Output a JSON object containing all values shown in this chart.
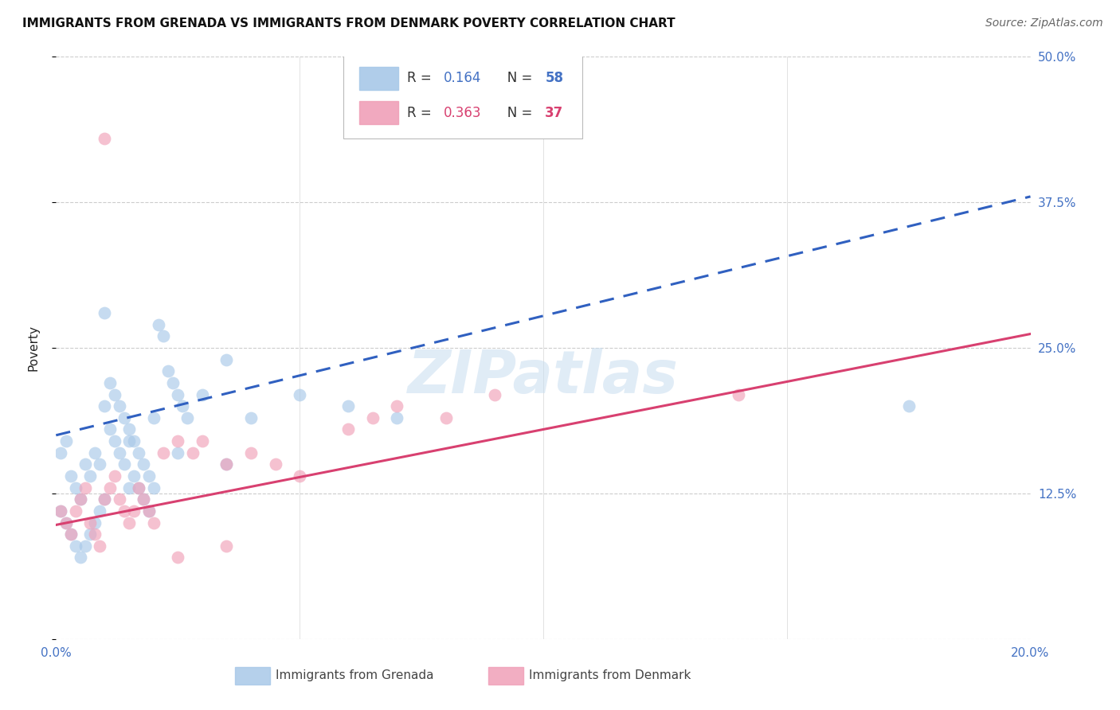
{
  "title": "IMMIGRANTS FROM GRENADA VS IMMIGRANTS FROM DENMARK POVERTY CORRELATION CHART",
  "source": "Source: ZipAtlas.com",
  "ylabel_label": "Poverty",
  "xlim": [
    0.0,
    0.2
  ],
  "ylim": [
    0.0,
    0.5
  ],
  "xticks": [
    0.0,
    0.05,
    0.1,
    0.15,
    0.2
  ],
  "xtick_labels": [
    "0.0%",
    "",
    "",
    "",
    "20.0%"
  ],
  "ytick_labels_right": [
    "",
    "12.5%",
    "25.0%",
    "37.5%",
    "50.0%"
  ],
  "yticks": [
    0.0,
    0.125,
    0.25,
    0.375,
    0.5
  ],
  "grid_color": "#cccccc",
  "background_color": "#ffffff",
  "watermark_text": "ZIPatlas",
  "series_grenada": {
    "label": "Immigrants from Grenada",
    "R": "0.164",
    "N": "58",
    "dot_color": "#a8c8e8",
    "line_color": "#3060c0",
    "line_style": "--",
    "x": [
      0.001,
      0.002,
      0.003,
      0.004,
      0.005,
      0.006,
      0.007,
      0.008,
      0.009,
      0.01,
      0.011,
      0.012,
      0.013,
      0.014,
      0.015,
      0.016,
      0.017,
      0.018,
      0.019,
      0.02,
      0.001,
      0.002,
      0.003,
      0.004,
      0.005,
      0.006,
      0.007,
      0.008,
      0.009,
      0.01,
      0.011,
      0.012,
      0.013,
      0.014,
      0.015,
      0.016,
      0.017,
      0.018,
      0.019,
      0.02,
      0.021,
      0.022,
      0.023,
      0.024,
      0.025,
      0.026,
      0.027,
      0.03,
      0.035,
      0.04,
      0.05,
      0.06,
      0.07,
      0.035,
      0.025,
      0.015,
      0.01,
      0.175
    ],
    "y": [
      0.16,
      0.17,
      0.14,
      0.13,
      0.12,
      0.15,
      0.14,
      0.16,
      0.15,
      0.2,
      0.18,
      0.17,
      0.16,
      0.15,
      0.13,
      0.14,
      0.13,
      0.12,
      0.11,
      0.19,
      0.11,
      0.1,
      0.09,
      0.08,
      0.07,
      0.08,
      0.09,
      0.1,
      0.11,
      0.12,
      0.22,
      0.21,
      0.2,
      0.19,
      0.18,
      0.17,
      0.16,
      0.15,
      0.14,
      0.13,
      0.27,
      0.26,
      0.23,
      0.22,
      0.21,
      0.2,
      0.19,
      0.21,
      0.24,
      0.19,
      0.21,
      0.2,
      0.19,
      0.15,
      0.16,
      0.17,
      0.28,
      0.2
    ]
  },
  "series_denmark": {
    "label": "Immigrants from Denmark",
    "R": "0.363",
    "N": "37",
    "dot_color": "#f0a0b8",
    "line_color": "#d84070",
    "line_style": "-",
    "x": [
      0.001,
      0.002,
      0.003,
      0.004,
      0.005,
      0.006,
      0.007,
      0.008,
      0.009,
      0.01,
      0.011,
      0.012,
      0.013,
      0.014,
      0.015,
      0.016,
      0.017,
      0.018,
      0.019,
      0.02,
      0.022,
      0.025,
      0.028,
      0.03,
      0.035,
      0.04,
      0.045,
      0.05,
      0.06,
      0.065,
      0.07,
      0.08,
      0.09,
      0.14,
      0.035,
      0.025,
      0.01
    ],
    "y": [
      0.11,
      0.1,
      0.09,
      0.11,
      0.12,
      0.13,
      0.1,
      0.09,
      0.08,
      0.12,
      0.13,
      0.14,
      0.12,
      0.11,
      0.1,
      0.11,
      0.13,
      0.12,
      0.11,
      0.1,
      0.16,
      0.17,
      0.16,
      0.17,
      0.15,
      0.16,
      0.15,
      0.14,
      0.18,
      0.19,
      0.2,
      0.19,
      0.21,
      0.21,
      0.08,
      0.07,
      0.43
    ]
  },
  "legend": {
    "R1": "0.164",
    "N1": "58",
    "color1": "#4472c4",
    "R2": "0.363",
    "N2": "37",
    "color2": "#d84070"
  },
  "title_fontsize": 11,
  "tick_fontsize": 11,
  "source_fontsize": 10
}
